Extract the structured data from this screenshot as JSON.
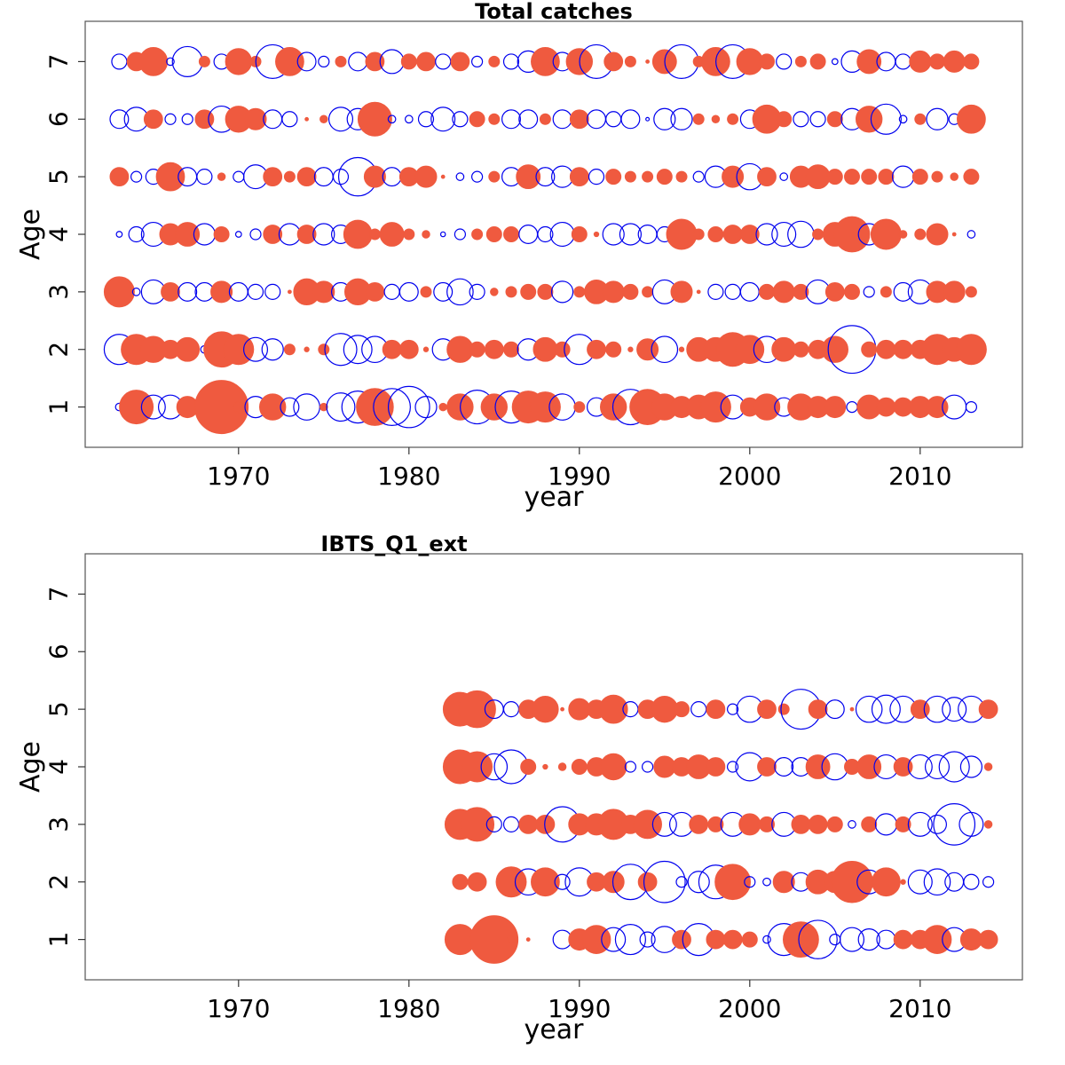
{
  "colors": {
    "positive": "#EF5A3F",
    "negative": "#0000EE",
    "axis": "#333333"
  },
  "chart_data": [
    {
      "type": "scatter",
      "subtype": "bubble-residuals",
      "title": "Total catches",
      "xlabel": "year",
      "ylabel": "Age",
      "xlim": [
        1961,
        2016
      ],
      "ylim": [
        0.3,
        7.7
      ],
      "xticks": [
        1970,
        1980,
        1990,
        2000,
        2010
      ],
      "yticks": [
        1,
        2,
        3,
        4,
        5,
        6,
        7
      ],
      "years": [
        1963,
        1964,
        1965,
        1966,
        1967,
        1968,
        1969,
        1970,
        1971,
        1972,
        1973,
        1974,
        1975,
        1976,
        1977,
        1978,
        1979,
        1980,
        1981,
        1982,
        1983,
        1984,
        1985,
        1986,
        1987,
        1988,
        1989,
        1990,
        1991,
        1992,
        1993,
        1994,
        1995,
        1996,
        1997,
        1998,
        1999,
        2000,
        2001,
        2002,
        2003,
        2004,
        2005,
        2006,
        2007,
        2008,
        2009,
        2010,
        2011,
        2012,
        2013
      ],
      "legend": "none",
      "encoding": "filled red = positive residual, open blue = negative residual; area proportional to |residual|",
      "residuals": {
        "1": [
          -0.05,
          1.0,
          -0.5,
          -0.5,
          0.4,
          -0.02,
          2.5,
          0.1,
          -0.4,
          0.6,
          -0.3,
          -0.6,
          0.05,
          -0.7,
          -0.9,
          1.2,
          -1.2,
          -1.5,
          -0.4,
          0.05,
          0.6,
          -1.0,
          0.6,
          -0.9,
          0.9,
          0.8,
          -0.6,
          0.1,
          -0.3,
          0.6,
          -1.1,
          1.1,
          0.6,
          0.4,
          0.5,
          0.8,
          -0.5,
          0.3,
          0.6,
          -0.3,
          0.6,
          0.4,
          0.4,
          -0.1,
          0.5,
          0.3,
          0.3,
          0.4,
          0.4,
          -0.5,
          -0.1
        ],
        "2": [
          -0.8,
          0.8,
          0.6,
          0.3,
          0.5,
          -0.05,
          1.1,
          0.8,
          -0.5,
          -0.4,
          0.1,
          0.02,
          0.1,
          -0.9,
          -0.7,
          -0.6,
          0.3,
          0.3,
          0.02,
          -0.4,
          0.6,
          0.2,
          0.3,
          0.2,
          -0.4,
          0.5,
          0.2,
          -0.8,
          0.3,
          0.2,
          0.02,
          0.4,
          -0.6,
          0.02,
          0.5,
          0.5,
          1.0,
          0.7,
          -0.6,
          0.5,
          0.2,
          0.3,
          0.6,
          -2.0,
          0.2,
          0.3,
          0.3,
          0.3,
          0.8,
          0.5,
          0.8
        ],
        "3": [
          0.8,
          -0.05,
          -0.5,
          0.3,
          -0.3,
          -0.3,
          0.4,
          -0.3,
          -0.2,
          -0.2,
          0.01,
          0.6,
          0.4,
          -0.3,
          0.6,
          0.3,
          -0.2,
          -0.3,
          0.1,
          -0.3,
          -0.6,
          -0.2,
          0.05,
          0.1,
          0.2,
          0.2,
          -0.4,
          0.1,
          0.5,
          0.4,
          0.2,
          0.1,
          -0.5,
          0.4,
          0.01,
          -0.2,
          -0.2,
          -0.3,
          0.2,
          0.4,
          0.2,
          -0.5,
          0.3,
          0.2,
          -0.1,
          0.1,
          -0.3,
          -0.5,
          0.4,
          0.4,
          0.1
        ],
        "4": [
          -0.03,
          -0.2,
          -0.5,
          0.4,
          0.5,
          -0.4,
          0.2,
          -0.03,
          -0.1,
          0.3,
          -0.4,
          0.3,
          -0.4,
          -0.3,
          0.7,
          0.1,
          0.5,
          0.1,
          0.05,
          -0.02,
          -0.1,
          0.1,
          0.2,
          0.2,
          -0.3,
          -0.2,
          -0.5,
          0.2,
          0.02,
          -0.4,
          -0.4,
          -0.3,
          -0.2,
          0.8,
          0.1,
          0.2,
          0.3,
          0.3,
          -0.4,
          -0.5,
          -0.6,
          0.1,
          0.5,
          1.1,
          -0.4,
          0.8,
          0.05,
          0.1,
          0.4,
          0.01,
          -0.05
        ],
        "5": [
          0.3,
          -0.1,
          -0.2,
          0.7,
          -0.3,
          -0.2,
          0.05,
          -0.1,
          -0.5,
          0.3,
          0.1,
          0.3,
          -0.3,
          -0.2,
          -1.3,
          0.4,
          -0.3,
          0.3,
          0.4,
          0.01,
          -0.05,
          -0.1,
          0.1,
          -0.3,
          0.5,
          -0.3,
          -0.4,
          0.3,
          -0.2,
          0.2,
          0.1,
          0.1,
          0.2,
          0.1,
          -0.1,
          -0.4,
          0.4,
          -0.6,
          0.3,
          -0.05,
          0.4,
          0.5,
          0.2,
          0.2,
          0.2,
          0.2,
          -0.4,
          0.2,
          0.1,
          0.05,
          0.2
        ],
        "6": [
          -0.3,
          -0.5,
          0.3,
          -0.1,
          -0.1,
          0.3,
          -0.6,
          0.6,
          0.4,
          -0.3,
          -0.2,
          0.01,
          0.05,
          -0.5,
          -0.4,
          1.0,
          -0.05,
          -0.05,
          -0.2,
          -0.5,
          -0.2,
          0.2,
          0.1,
          -0.3,
          -0.3,
          0.1,
          -0.3,
          0.3,
          -0.3,
          -0.2,
          -0.3,
          -0.01,
          -0.4,
          -0.4,
          0.1,
          0.05,
          0.1,
          -0.3,
          0.7,
          0.2,
          -0.2,
          -0.2,
          0.2,
          -0.4,
          0.6,
          -0.8,
          -0.05,
          0.1,
          -0.4,
          -0.1,
          0.7
        ],
        "7": [
          -0.2,
          0.3,
          0.7,
          -0.05,
          -0.8,
          0.1,
          -0.2,
          0.6,
          0.1,
          -1.0,
          0.7,
          -0.3,
          -0.1,
          0.1,
          -0.3,
          0.3,
          -0.5,
          0.2,
          0.3,
          -0.2,
          0.3,
          -0.1,
          0.1,
          -0.2,
          -0.4,
          0.7,
          -0.3,
          0.6,
          -1.0,
          0.3,
          0.1,
          0.01,
          0.5,
          -1.0,
          0.1,
          0.7,
          -1.0,
          0.6,
          0.2,
          -0.2,
          0.1,
          0.2,
          -0.03,
          -0.4,
          0.5,
          -0.3,
          -0.2,
          0.4,
          0.2,
          0.4,
          0.2
        ]
      }
    },
    {
      "type": "scatter",
      "subtype": "bubble-residuals",
      "title": "IBTS_Q1_ext",
      "xlabel": "year",
      "ylabel": "Age",
      "xlim": [
        1961,
        2016
      ],
      "ylim": [
        0.3,
        7.7
      ],
      "xticks": [
        1970,
        1980,
        1990,
        2000,
        2010
      ],
      "yticks": [
        1,
        2,
        3,
        4,
        5,
        6,
        7
      ],
      "years": [
        1983,
        1984,
        1985,
        1986,
        1987,
        1988,
        1989,
        1990,
        1991,
        1992,
        1993,
        1994,
        1995,
        1996,
        1997,
        1998,
        1999,
        2000,
        2001,
        2002,
        2003,
        2004,
        2005,
        2006,
        2007,
        2008,
        2009,
        2010,
        2011,
        2012,
        2013,
        2014
      ],
      "legend": "none",
      "encoding": "filled red = positive residual, open blue = negative residual; area proportional to |residual|",
      "residuals": {
        "1": [
          0.8,
          null,
          2.0,
          0.05,
          0.01,
          null,
          -0.3,
          0.4,
          0.7,
          -0.5,
          -0.8,
          -0.2,
          -0.6,
          0.3,
          -0.9,
          0.3,
          0.3,
          0.2,
          -0.05,
          -0.9,
          1.1,
          -1.3,
          -0.1,
          -0.5,
          -0.4,
          -0.3,
          0.3,
          0.3,
          0.7,
          -0.5,
          0.4,
          0.3
        ],
        "2": [
          0.2,
          0.3,
          null,
          0.8,
          -0.6,
          0.7,
          -0.2,
          -0.7,
          0.3,
          0.4,
          -1.1,
          0.3,
          -1.5,
          -0.1,
          -0.4,
          -1.0,
          1.1,
          -0.1,
          -0.05,
          0.4,
          -0.3,
          0.5,
          0.4,
          1.5,
          -0.5,
          0.7,
          0.02,
          -0.5,
          -0.6,
          -0.3,
          -0.2,
          -0.1
        ],
        "3": [
          0.8,
          1.0,
          -0.2,
          -0.2,
          0.3,
          0.3,
          -1.1,
          0.4,
          0.4,
          0.8,
          0.3,
          0.7,
          -0.5,
          -0.5,
          0.3,
          0.2,
          -0.5,
          0.4,
          0.2,
          -0.5,
          0.3,
          0.3,
          0.2,
          -0.05,
          0.2,
          -0.4,
          0.2,
          -0.5,
          -0.3,
          -1.5,
          -0.5,
          0.05
        ],
        "4": [
          1.0,
          0.8,
          -0.6,
          -1.0,
          0.2,
          0.02,
          0.05,
          0.2,
          0.3,
          0.6,
          -0.1,
          -0.1,
          0.4,
          0.3,
          0.5,
          0.3,
          -0.1,
          -0.7,
          0.3,
          -0.3,
          -0.3,
          0.5,
          -0.6,
          0.2,
          0.5,
          -0.5,
          0.3,
          -0.5,
          -0.5,
          -0.8,
          -0.4,
          0.05
        ],
        "5": [
          1.0,
          1.2,
          -0.3,
          -0.2,
          0.3,
          0.6,
          0.01,
          0.4,
          0.3,
          0.7,
          -0.2,
          0.3,
          0.6,
          0.2,
          -0.2,
          0.3,
          -0.1,
          -0.6,
          0.3,
          0.1,
          -1.4,
          0.3,
          -0.3,
          0.01,
          -0.6,
          -0.7,
          -0.6,
          0.3,
          -0.6,
          -0.5,
          -0.6,
          0.3
        ]
      }
    }
  ]
}
